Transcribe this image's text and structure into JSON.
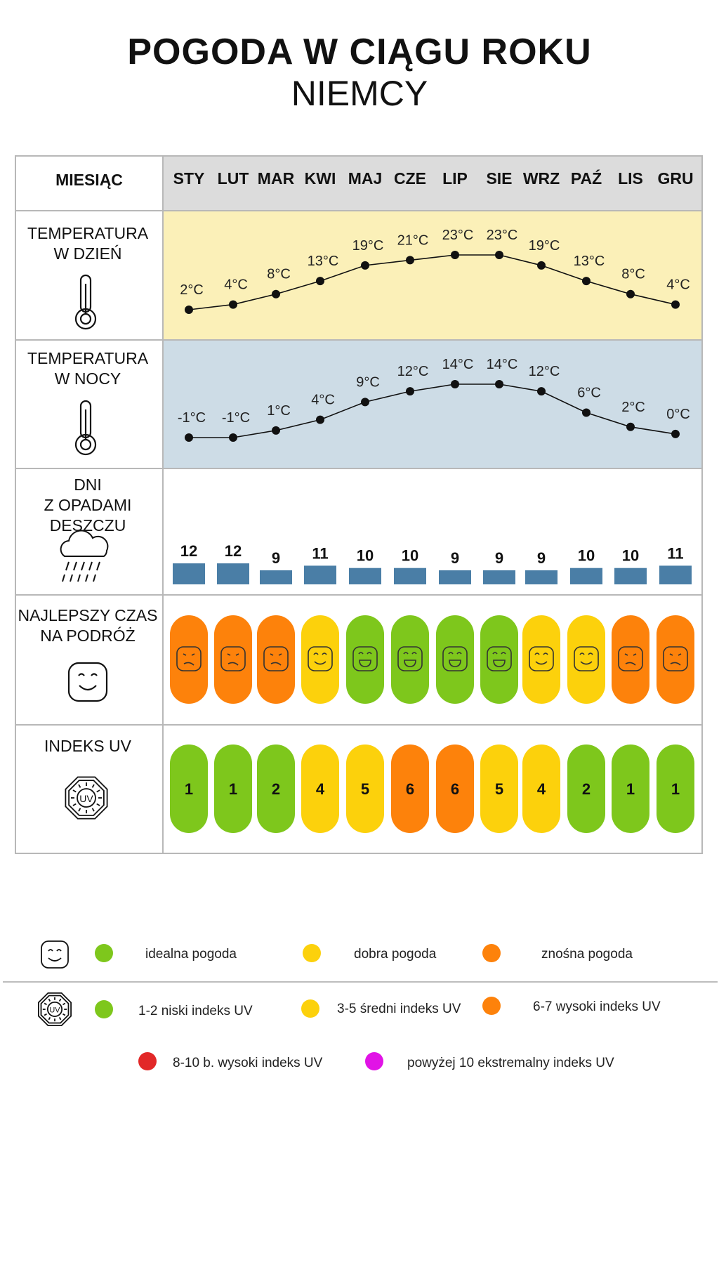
{
  "title": "POGODA W CIĄGU ROKU",
  "subtitle": "NIEMCY",
  "header_label": "MIESIĄC",
  "months": [
    "STY",
    "LUT",
    "MAR",
    "KWI",
    "MAJ",
    "CZE",
    "LIP",
    "SIE",
    "WRZ",
    "PAŹ",
    "LIS",
    "GRU"
  ],
  "rows": {
    "day_temp": [
      "TEMPERATURA",
      "W DZIEŃ"
    ],
    "night_temp": [
      "TEMPERATURA",
      "W NOCY"
    ],
    "rain": [
      "DNI",
      "Z OPADAMI",
      "DESZCZU"
    ],
    "best": [
      "NAJLEPSZY CZAS",
      "NA PODRÓŻ"
    ],
    "uv": [
      "INDEKS UV"
    ]
  },
  "colors": {
    "header_bg": "#dcdcdc",
    "day_bg": "#fbf0b8",
    "night_bg": "#cddce6",
    "rain_bar": "#4a7ea6",
    "green": "#7ec71c",
    "yellow": "#fcd10c",
    "orange": "#fd820b",
    "red": "#e22828",
    "magenta": "#e113e6",
    "grid_line": "#b8b8b8"
  },
  "chart_data": [
    {
      "type": "line",
      "name": "day_temperature",
      "categories": [
        "STY",
        "LUT",
        "MAR",
        "KWI",
        "MAJ",
        "CZE",
        "LIP",
        "SIE",
        "WRZ",
        "PAŹ",
        "LIS",
        "GRU"
      ],
      "values": [
        2,
        4,
        8,
        13,
        19,
        21,
        23,
        23,
        19,
        13,
        8,
        4
      ],
      "labels": [
        "2°C",
        "4°C",
        "8°C",
        "13°C",
        "19°C",
        "21°C",
        "23°C",
        "23°C",
        "19°C",
        "13°C",
        "8°C",
        "4°C"
      ]
    },
    {
      "type": "line",
      "name": "night_temperature",
      "categories": [
        "STY",
        "LUT",
        "MAR",
        "KWI",
        "MAJ",
        "CZE",
        "LIP",
        "SIE",
        "WRZ",
        "PAŹ",
        "LIS",
        "GRU"
      ],
      "values": [
        -1,
        -1,
        1,
        4,
        9,
        12,
        14,
        14,
        12,
        6,
        2,
        0
      ],
      "labels": [
        "-1°C",
        "-1°C",
        "1°C",
        "4°C",
        "9°C",
        "12°C",
        "14°C",
        "14°C",
        "12°C",
        "6°C",
        "2°C",
        "0°C"
      ]
    },
    {
      "type": "bar",
      "name": "rain_days",
      "categories": [
        "STY",
        "LUT",
        "MAR",
        "KWI",
        "MAJ",
        "CZE",
        "LIP",
        "SIE",
        "WRZ",
        "PAŹ",
        "LIS",
        "GRU"
      ],
      "values": [
        12,
        12,
        9,
        11,
        10,
        10,
        9,
        9,
        9,
        10,
        10,
        11
      ]
    },
    {
      "type": "table",
      "name": "best_time_to_travel",
      "categories": [
        "STY",
        "LUT",
        "MAR",
        "KWI",
        "MAJ",
        "CZE",
        "LIP",
        "SIE",
        "WRZ",
        "PAŹ",
        "LIS",
        "GRU"
      ],
      "values": [
        "znośna",
        "znośna",
        "znośna",
        "dobra",
        "idealna",
        "idealna",
        "idealna",
        "idealna",
        "dobra",
        "dobra",
        "znośna",
        "znośna"
      ]
    },
    {
      "type": "table",
      "name": "uv_index",
      "categories": [
        "STY",
        "LUT",
        "MAR",
        "KWI",
        "MAJ",
        "CZE",
        "LIP",
        "SIE",
        "WRZ",
        "PAŹ",
        "LIS",
        "GRU"
      ],
      "values": [
        1,
        1,
        2,
        4,
        5,
        6,
        6,
        5,
        4,
        2,
        1,
        1
      ]
    }
  ],
  "legend": {
    "weather": [
      {
        "label": "idealna pogoda",
        "color": "#7ec71c"
      },
      {
        "label": "dobra pogoda",
        "color": "#fcd10c"
      },
      {
        "label": "znośna pogoda",
        "color": "#fd820b"
      }
    ],
    "uv": [
      {
        "label": "1-2 niski indeks UV",
        "color": "#7ec71c"
      },
      {
        "label": "3-5 średni indeks UV",
        "color": "#fcd10c"
      },
      {
        "label": "6-7 wysoki indeks UV",
        "color": "#fd820b"
      },
      {
        "label": "8-10 b. wysoki indeks UV",
        "color": "#e22828"
      },
      {
        "label": "powyżej 10 ekstremalny indeks UV",
        "color": "#e113e6"
      }
    ]
  },
  "icons": {
    "thermometer": "thermometer-icon",
    "rain": "rain-cloud-icon",
    "smiley": "smiley-icon",
    "uv": "uv-sun-icon"
  }
}
